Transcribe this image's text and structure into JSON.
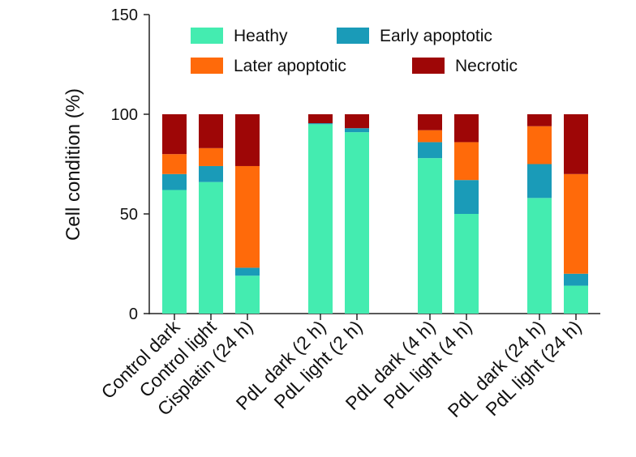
{
  "chart_data": {
    "type": "bar",
    "stacked": true,
    "title": "",
    "xlabel": "",
    "ylabel": "Cell condition (%)",
    "ylim": [
      0,
      150
    ],
    "yticks": [
      0,
      50,
      100,
      150
    ],
    "grid": false,
    "legend_position": "top",
    "categories": [
      "Control dark",
      "Control light",
      "Cisplatin (24 h)",
      "PdL dark (2 h)",
      "PdL light (2 h)",
      "PdL dark (4 h)",
      "PdL light (4 h)",
      "PdL dark (24 h)",
      "PdL light (24 h)"
    ],
    "groups": [
      [
        0,
        1,
        2
      ],
      [
        3,
        4
      ],
      [
        5,
        6
      ],
      [
        7,
        8
      ]
    ],
    "series": [
      {
        "name": "Heathy",
        "color": "#44ecb0",
        "values": [
          62,
          66,
          19,
          95,
          91,
          78,
          50,
          58,
          14
        ]
      },
      {
        "name": "Early apoptotic",
        "color": "#1a9bb8",
        "values": [
          8,
          8,
          4,
          0.5,
          2,
          8,
          17,
          17,
          6
        ]
      },
      {
        "name": "Later apoptotic",
        "color": "#ff6a0a",
        "values": [
          10,
          9,
          51,
          0,
          0,
          6,
          19,
          19,
          50
        ]
      },
      {
        "name": "Necrotic",
        "color": "#9e0606",
        "values": [
          20,
          17,
          26,
          4.5,
          7,
          8,
          14,
          6,
          30
        ]
      }
    ]
  }
}
